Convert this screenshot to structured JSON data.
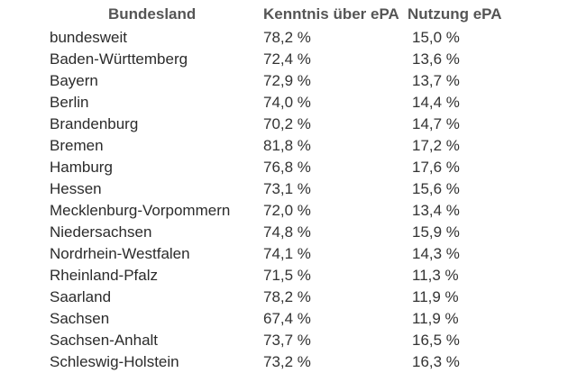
{
  "headers": {
    "state": "Bundesland",
    "knowledge": "Kenntnis über ePA",
    "usage": "Nutzung ePA"
  },
  "rows": [
    {
      "state": "bundesweit",
      "knowledge": "78,2 %",
      "usage": "15,0 %"
    },
    {
      "state": "Baden-Württemberg",
      "knowledge": "72,4 %",
      "usage": "13,6 %"
    },
    {
      "state": "Bayern",
      "knowledge": "72,9 %",
      "usage": "13,7 %"
    },
    {
      "state": "Berlin",
      "knowledge": "74,0 %",
      "usage": "14,4 %"
    },
    {
      "state": "Brandenburg",
      "knowledge": "70,2 %",
      "usage": "14,7 %"
    },
    {
      "state": "Bremen",
      "knowledge": "81,8 %",
      "usage": "17,2 %"
    },
    {
      "state": "Hamburg",
      "knowledge": "76,8 %",
      "usage": "17,6 %"
    },
    {
      "state": "Hessen",
      "knowledge": "73,1 %",
      "usage": "15,6 %"
    },
    {
      "state": "Mecklenburg-Vorpommern",
      "knowledge": "72,0 %",
      "usage": "13,4 %"
    },
    {
      "state": "Niedersachsen",
      "knowledge": "74,8 %",
      "usage": "15,9 %"
    },
    {
      "state": "Nordrhein-Westfalen",
      "knowledge": "74,1 %",
      "usage": "14,3 %"
    },
    {
      "state": "Rheinland-Pfalz",
      "knowledge": "71,5 %",
      "usage": "11,3 %"
    },
    {
      "state": "Saarland",
      "knowledge": "78,2 %",
      "usage": "11,9 %"
    },
    {
      "state": "Sachsen",
      "knowledge": "67,4 %",
      "usage": "11,9 %"
    },
    {
      "state": "Sachsen-Anhalt",
      "knowledge": "73,7 %",
      "usage": "16,5 %"
    },
    {
      "state": "Schleswig-Holstein",
      "knowledge": "73,2 %",
      "usage": "16,3 %"
    }
  ]
}
